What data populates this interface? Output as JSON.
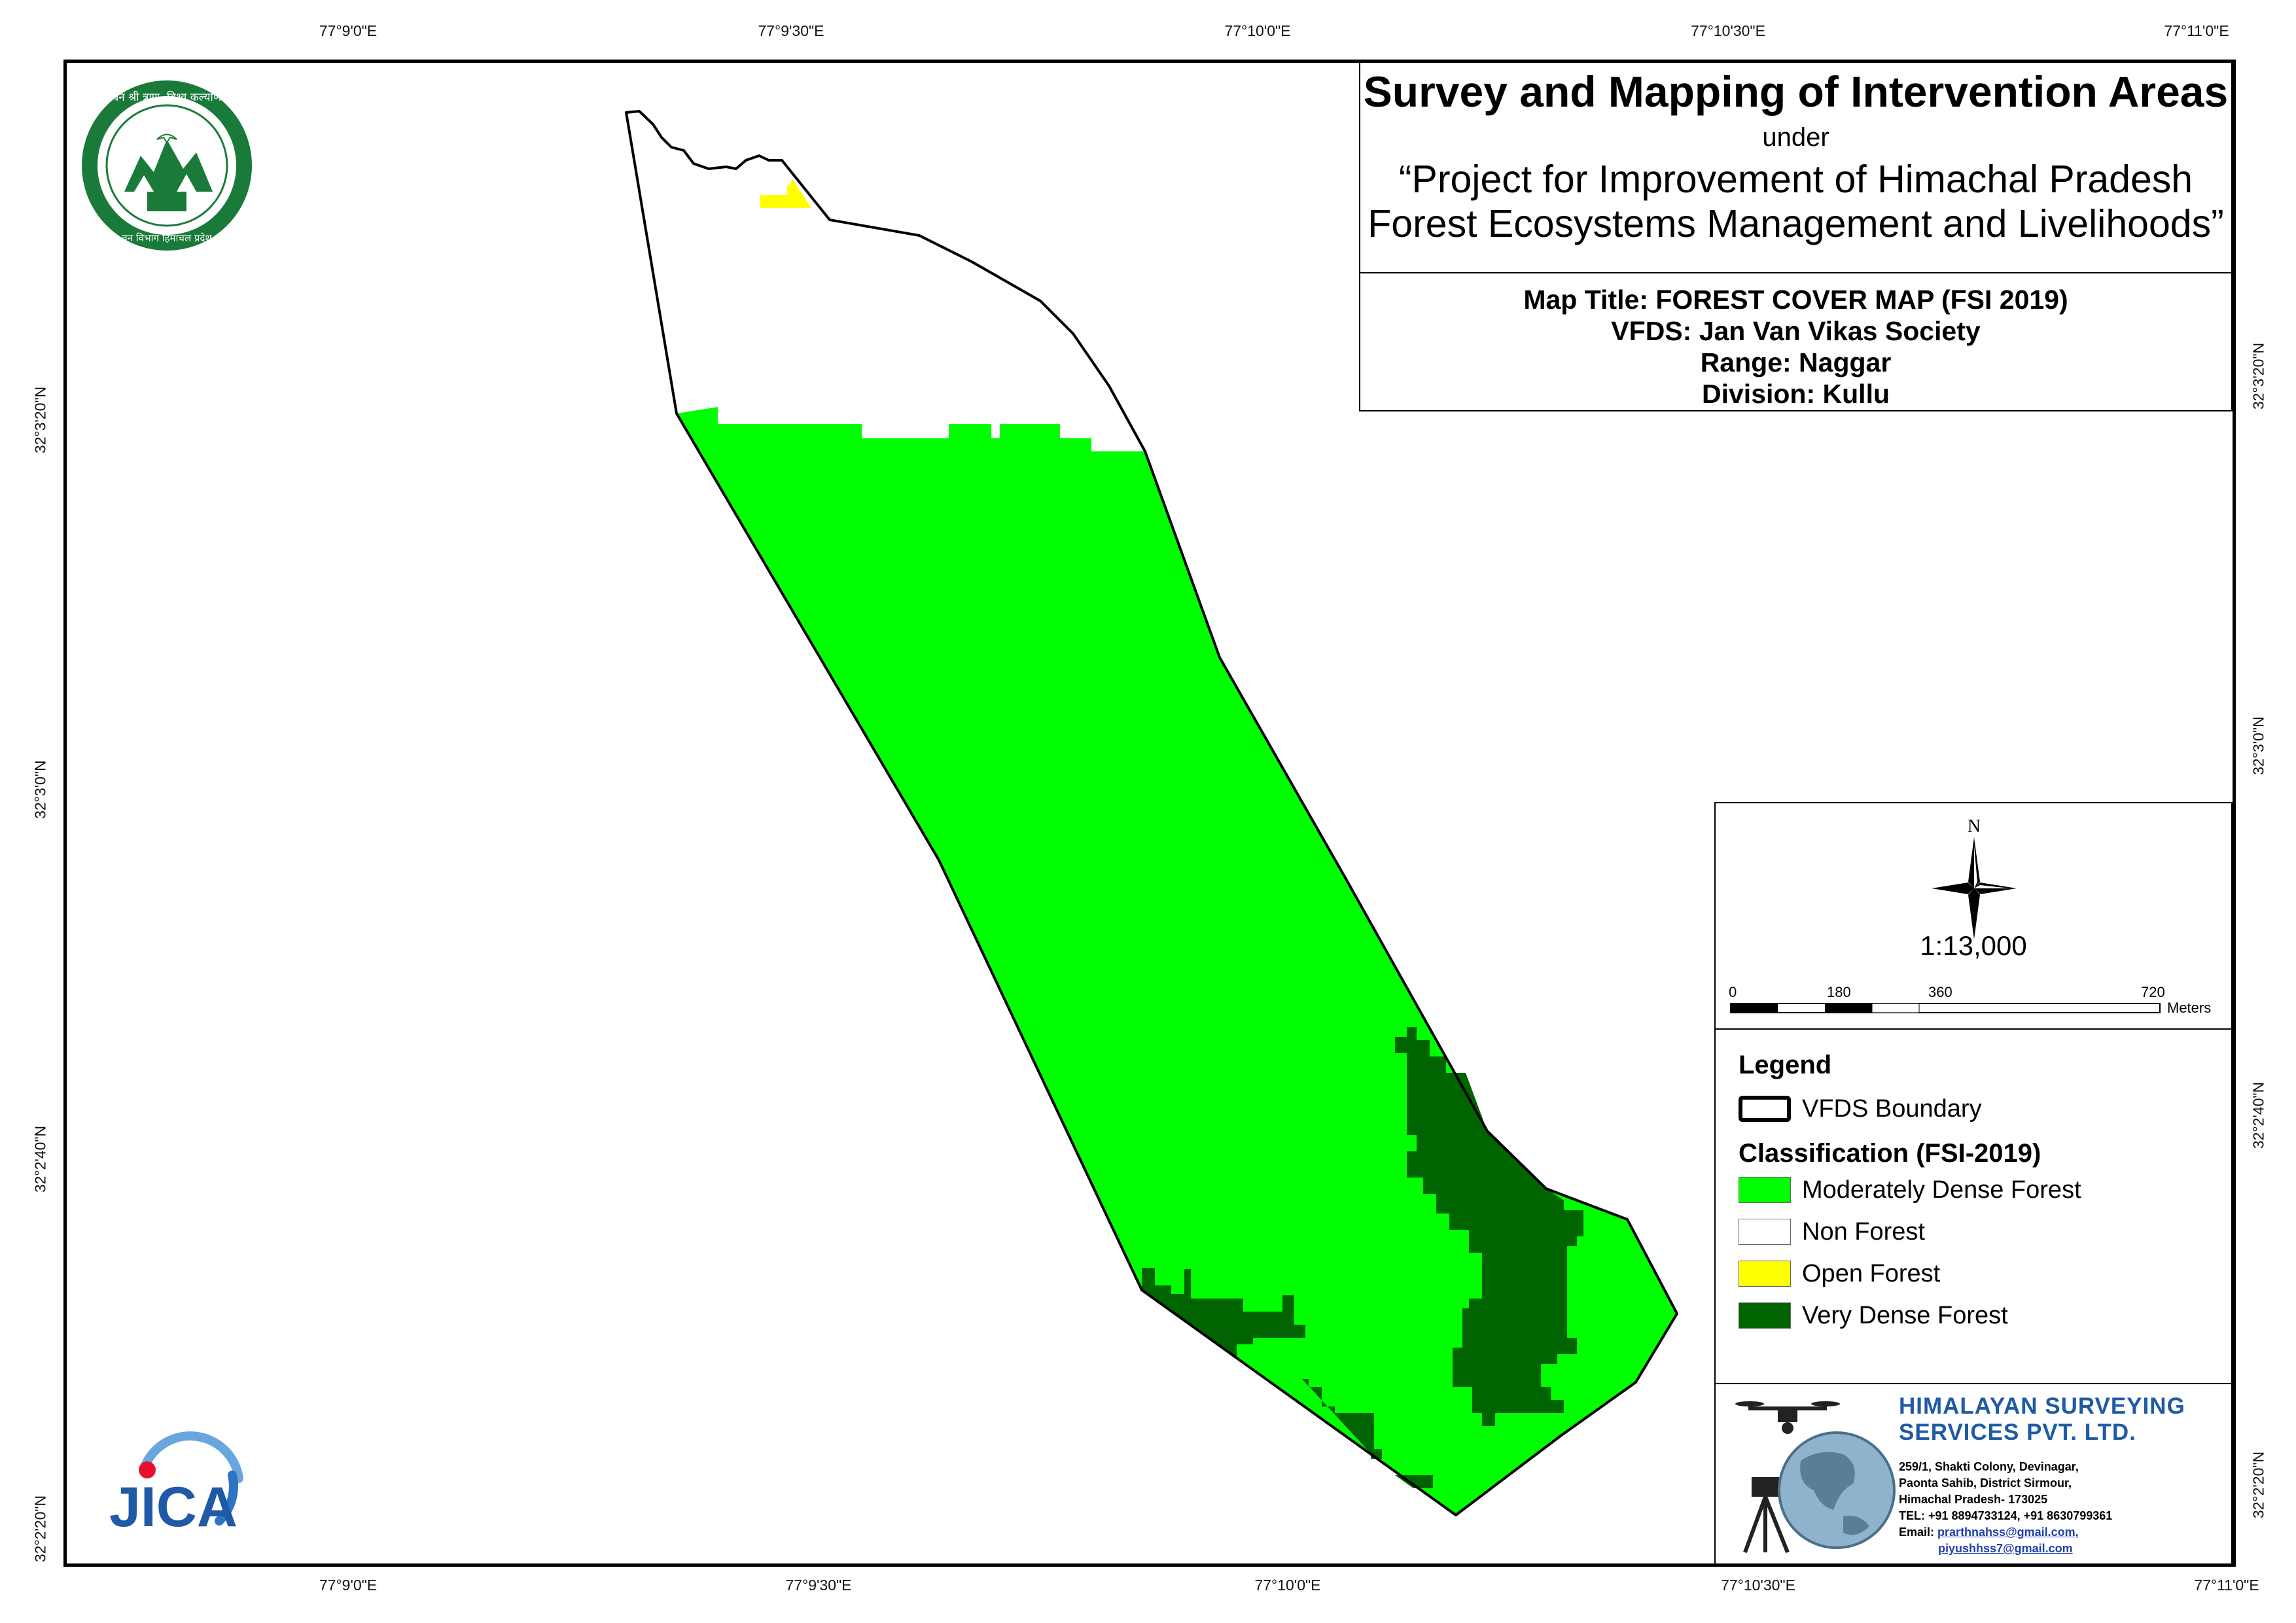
{
  "graticule": {
    "top_lon": [
      "77°9'0\"E",
      "77°9'30\"E",
      "77°10'0\"E",
      "77°10'30\"E",
      "77°11'0\"E"
    ],
    "bottom_lon": [
      "77°9'0\"E",
      "77°9'30\"E",
      "77°10'0\"E",
      "77°10'30\"E",
      "77°11'0\"E"
    ],
    "left_lat": [
      "32°3'20\"N",
      "32°3'0\"N",
      "32°2'40\"N",
      "32°2'20\"N"
    ],
    "right_lat": [
      "32°3'20\"N",
      "32°3'0\"N",
      "32°2'40\"N",
      "32°2'20\"N"
    ]
  },
  "title": {
    "main": "Survey and Mapping of Intervention Areas",
    "under": "under",
    "project_line1": "“Project for Improvement of Himachal Pradesh",
    "project_line2": "Forest Ecosystems Management and Livelihoods”",
    "map_title": "Map Title: FOREST COVER MAP (FSI 2019)",
    "vfds": "VFDS: Jan Van Vikas Society",
    "range": "Range: Naggar",
    "division": "Division: Kullu"
  },
  "north_arrow": {
    "label": "N"
  },
  "scale": {
    "ratio": "1:13,000",
    "ticks": [
      "0",
      "180",
      "360",
      "720"
    ],
    "unit": "Meters"
  },
  "legend": {
    "heading": "Legend",
    "boundary_label": "VFDS Boundary",
    "classification_heading": "Classification (FSI-2019)",
    "items": [
      {
        "label": "Moderately Dense Forest",
        "color": "#00ff00"
      },
      {
        "label": "Non Forest",
        "color": "#ffffff"
      },
      {
        "label": "Open Forest",
        "color": "#ffff00"
      },
      {
        "label": "Very Dense Forest",
        "color": "#006400"
      }
    ]
  },
  "company": {
    "name_line1": "HIMALAYAN SURVEYING",
    "name_line2": "SERVICES PVT. LTD.",
    "address1": "259/1, Shakti Colony, Devinagar,",
    "address2": "Paonta Sahib, District Sirmour,",
    "address3": "Himachal Pradesh- 173025",
    "phone": "TEL: +91 8894733124, +91 8630799361",
    "email_label": "Email:",
    "email1": "prarthnahss@gmail.com,",
    "email2": "piyushhss7@gmail.com",
    "brand_color": "#1f5aa6"
  },
  "logos": {
    "forest_dept_top": "वन श्री त्राण, विश्व कल्याण",
    "forest_dept_bottom": "वन विभाग हिमाचल प्रदेश",
    "jica": "JICA"
  },
  "colors": {
    "moderately_dense": "#00ff00",
    "very_dense": "#006400",
    "open_forest": "#ffff00",
    "boundary": "#000000"
  }
}
